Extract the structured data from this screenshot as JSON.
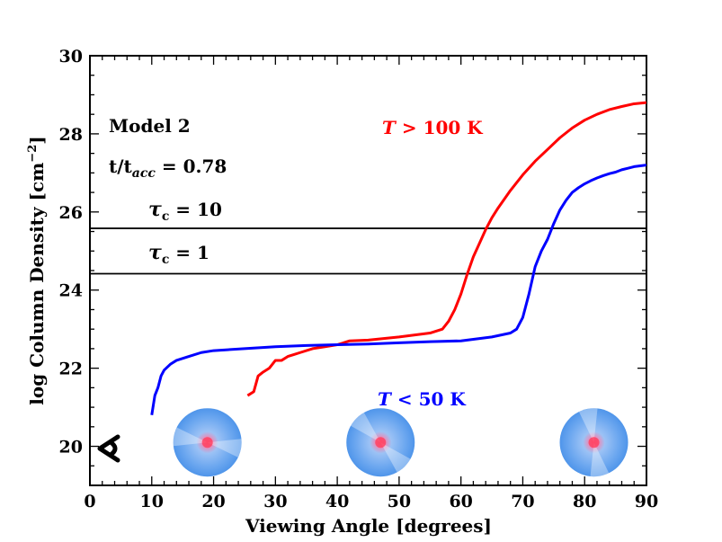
{
  "chart_data": {
    "type": "line",
    "xlabel": "Viewing Angle [degrees]",
    "ylabel": "log Column Density [cm",
    "ylabel_sup": "−2",
    "ylabel_close": "]",
    "xlim": [
      0,
      90
    ],
    "ylim": [
      19,
      30
    ],
    "xticks": [
      "0",
      "10",
      "20",
      "30",
      "40",
      "50",
      "60",
      "70",
      "80",
      "90"
    ],
    "yticks": [
      "20",
      "22",
      "24",
      "26",
      "28",
      "30"
    ],
    "series": [
      {
        "name": "T > 100 K",
        "color": "#ff0000",
        "x": [
          25.5,
          26.5,
          27.2,
          28,
          29,
          30,
          31,
          32,
          33,
          34,
          36,
          38,
          40,
          42,
          45,
          50,
          55,
          57,
          58,
          59,
          60,
          61,
          62,
          63,
          64,
          65,
          66,
          68,
          70,
          72,
          74,
          76,
          78,
          80,
          82,
          84,
          86,
          88,
          90
        ],
        "y": [
          21.3,
          21.4,
          21.8,
          21.9,
          22.0,
          22.2,
          22.2,
          22.3,
          22.35,
          22.4,
          22.5,
          22.55,
          22.6,
          22.7,
          22.72,
          22.8,
          22.9,
          23.0,
          23.2,
          23.5,
          23.9,
          24.4,
          24.85,
          25.2,
          25.55,
          25.85,
          26.1,
          26.55,
          26.95,
          27.3,
          27.6,
          27.9,
          28.15,
          28.35,
          28.5,
          28.62,
          28.7,
          28.77,
          28.8
        ]
      },
      {
        "name": "T < 50 K",
        "color": "#0000ff",
        "x": [
          10.0,
          10.5,
          11.0,
          11.5,
          12.0,
          13.0,
          14.0,
          16.0,
          18.0,
          20.0,
          25.0,
          30.0,
          35.0,
          40.0,
          45.0,
          50.0,
          55.0,
          60.0,
          65.0,
          68.0,
          69.0,
          70.0,
          71.0,
          72.0,
          73.0,
          74.0,
          75.0,
          76.0,
          77.0,
          78.0,
          79.0,
          80.0,
          81.0,
          82.0,
          83.0,
          84.0,
          85.0,
          86.0,
          87.0,
          88.0,
          89.0,
          90.0
        ],
        "y": [
          20.8,
          21.3,
          21.5,
          21.8,
          21.95,
          22.1,
          22.2,
          22.3,
          22.4,
          22.45,
          22.5,
          22.55,
          22.58,
          22.6,
          22.62,
          22.65,
          22.68,
          22.7,
          22.8,
          22.9,
          23.0,
          23.3,
          23.9,
          24.6,
          25.0,
          25.3,
          25.7,
          26.05,
          26.3,
          26.5,
          26.62,
          26.72,
          26.8,
          26.87,
          26.93,
          26.98,
          27.02,
          27.08,
          27.12,
          27.16,
          27.18,
          27.2
        ]
      }
    ],
    "hlines": [
      {
        "y": 25.58,
        "label": "τc = 10",
        "color": "#000000"
      },
      {
        "y": 24.42,
        "label": "τc = 1",
        "color": "#000000"
      }
    ],
    "annotations": {
      "model": "Model 2",
      "time_label": "t/tacc = 0.78",
      "red_legend": "T > 100 K",
      "blue_legend": "T < 50 K"
    },
    "inset_images": [
      {
        "name": "disk-image-low-angle",
        "x": 19,
        "y": 20.1,
        "wedge_angle": 10
      },
      {
        "name": "disk-image-mid-angle",
        "x": 47,
        "y": 20.1,
        "wedge_angle": 45
      },
      {
        "name": "disk-image-high-angle",
        "x": 81.5,
        "y": 20.1,
        "wedge_angle": 80
      }
    ],
    "eye_symbol": "viewer-eye"
  }
}
